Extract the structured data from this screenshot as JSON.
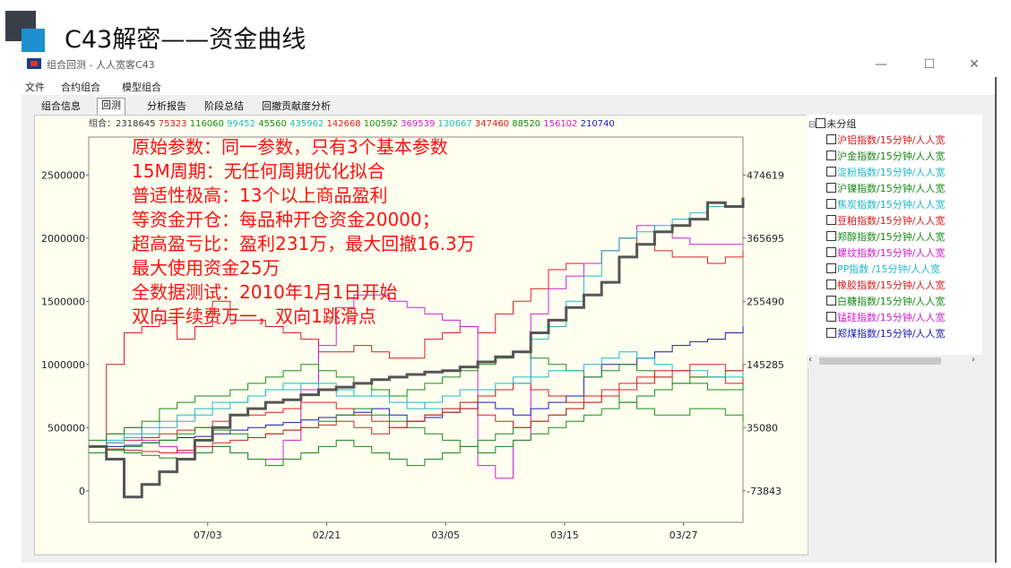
{
  "slide": {
    "title": "C43解密——资金曲线"
  },
  "window": {
    "title": "组合回测 - 人人宽客C43",
    "min": "—",
    "max": "☐",
    "close": "✕"
  },
  "menu": [
    "文件",
    "合约组合",
    "模型组合"
  ],
  "tabs": [
    "组合信息",
    "回测",
    "分析报告",
    "阶段总结",
    "回撤贡献度分析"
  ],
  "active_tab": "回测",
  "tree": {
    "root": "未分组",
    "items": [
      {
        "label": "沪铝指数/15分钟/人人宽",
        "color": "#d42020"
      },
      {
        "label": "沪金指数/15分钟/人人宽",
        "color": "#1a8a1a"
      },
      {
        "label": "淀粉指数/15分钟/人人宽",
        "color": "#20b8c8"
      },
      {
        "label": "沪镍指数/15分钟/人人宽",
        "color": "#1a8a1a"
      },
      {
        "label": "焦炭指数/15分钟/人人宽",
        "color": "#20b8c8"
      },
      {
        "label": "豆粕指数/15分钟/人人宽",
        "color": "#d42020"
      },
      {
        "label": "郑醇指数/15分钟/人人宽",
        "color": "#1a8a1a"
      },
      {
        "label": "螺纹指数/15分钟/人人宽",
        "color": "#d020d0"
      },
      {
        "label": "PP指数 /15分钟/人人宽",
        "color": "#20b8c8"
      },
      {
        "label": "橡胶指数/15分钟/人人宽",
        "color": "#d42020"
      },
      {
        "label": "白糖指数/15分钟/人人宽",
        "color": "#1a8a1a"
      },
      {
        "label": "锰硅指数/15分钟/人人宽",
        "color": "#d020d0"
      },
      {
        "label": "郑煤指数/15分钟/人人宽",
        "color": "#1a1ab8"
      }
    ]
  },
  "legend_prefix": "组合：2318645",
  "legend_values": [
    {
      "text": "75323",
      "color": "#d42020"
    },
    {
      "text": "116060",
      "color": "#1a8a1a"
    },
    {
      "text": "99452",
      "color": "#20b8c8"
    },
    {
      "text": "45560",
      "color": "#1a8a1a"
    },
    {
      "text": "435962",
      "color": "#20b8c8"
    },
    {
      "text": "142668",
      "color": "#d42020"
    },
    {
      "text": "100592",
      "color": "#1a8a1a"
    },
    {
      "text": "369539",
      "color": "#d020d0"
    },
    {
      "text": "130667",
      "color": "#20b8c8"
    },
    {
      "text": "347460",
      "color": "#d42020"
    },
    {
      "text": "88520",
      "color": "#1a8a1a"
    },
    {
      "text": "156102",
      "color": "#d020d0"
    },
    {
      "text": "210740",
      "color": "#1a1ab8"
    }
  ],
  "annotations": [
    "原始参数：同一参数，只有3个基本参数",
    "15M周期：无任何周期优化拟合",
    "普适性极高：13个以上商品盈利",
    "等资金开仓：每品种开仓资金20000；",
    "超高盈亏比：盈利231万，最大回撤16.3万",
    "最大使用资金25万",
    "全数据测试：2010年1月1日开始",
    "双向手续费万一，双向1跳滑点"
  ],
  "annotation_color": "#ff1010",
  "chart_data": {
    "type": "line",
    "left_axis_ticks": [
      "2500000",
      "2000000",
      "1500000",
      "1000000",
      "500000",
      "0"
    ],
    "left_ylim": [
      -250000,
      2800000
    ],
    "right_axis_ticks": [
      "474619",
      "365695",
      "255490",
      "145285",
      "35080",
      "-73843"
    ],
    "x_tick_labels": [
      "07/03",
      "02/21",
      "03/05",
      "03/15",
      "03/27"
    ],
    "series": [
      {
        "name": "组合",
        "color": "#555555",
        "width": 3,
        "values": [
          350000,
          250000,
          -50000,
          50000,
          150000,
          250000,
          400000,
          500000,
          600000,
          650000,
          700000,
          720000,
          760000,
          800000,
          820000,
          850000,
          880000,
          900000,
          920000,
          940000,
          950000,
          980000,
          1020000,
          1060000,
          1100000,
          1250000,
          1350000,
          1450000,
          1550000,
          1650000,
          1850000,
          1950000,
          2050000,
          2100000,
          2150000,
          2280000,
          2250000,
          2320000
        ]
      },
      {
        "name": "75323",
        "color": "#d42020",
        "width": 1,
        "values": [
          300000,
          1000000,
          1250000,
          1300000,
          1350000,
          1200000,
          1300000,
          1500000,
          1350000,
          1350000,
          1300000,
          1250000,
          1200000,
          1100000,
          1100000,
          1150000,
          1100000,
          1050000,
          1050000,
          1200000,
          1250000,
          1300000,
          1250000,
          1400000,
          1500000,
          1600000,
          1750000,
          1800000,
          1800000,
          1900000,
          2000000,
          1950000,
          1900000,
          1850000,
          1850000,
          1800000,
          1850000,
          1900000
        ]
      },
      {
        "name": "369539",
        "color": "#d020d0",
        "width": 1,
        "values": [
          300000,
          450000,
          500000,
          400000,
          350000,
          300000,
          300000,
          350000,
          300000,
          250000,
          250000,
          400000,
          800000,
          1150000,
          1450000,
          1550000,
          1550000,
          1500000,
          1450000,
          1400000,
          1350000,
          1300000,
          200000,
          100000,
          400000,
          1400000,
          1600000,
          1700000,
          1800000,
          1900000,
          2000000,
          2100000,
          2050000,
          2000000,
          1950000,
          1950000,
          1950000,
          1950000
        ]
      },
      {
        "name": "130667",
        "color": "#20b8c8",
        "width": 1,
        "values": [
          350000,
          400000,
          450000,
          500000,
          550000,
          600000,
          650000,
          700000,
          700000,
          750000,
          800000,
          850000,
          850000,
          800000,
          750000,
          750000,
          800000,
          750000,
          700000,
          650000,
          650000,
          700000,
          750000,
          800000,
          900000,
          1200000,
          1300000,
          1500000,
          1700000,
          1900000,
          2000000,
          2050000,
          2100000,
          2150000,
          2200000,
          2250000,
          2250000,
          2300000
        ]
      },
      {
        "name": "210740",
        "color": "#1a1ab8",
        "width": 1,
        "values": [
          350000,
          350000,
          360000,
          380000,
          400000,
          420000,
          430000,
          450000,
          480000,
          500000,
          520000,
          540000,
          560000,
          580000,
          600000,
          620000,
          650000,
          600000,
          550000,
          580000,
          620000,
          650000,
          700000,
          650000,
          600000,
          650000,
          700000,
          750000,
          900000,
          1000000,
          1000000,
          1050000,
          1100000,
          1150000,
          1180000,
          1200000,
          1250000,
          1300000
        ]
      },
      {
        "name": "116060",
        "color": "#1a8a1a",
        "width": 1,
        "values": [
          400000,
          450000,
          500000,
          550000,
          650000,
          700000,
          750000,
          750000,
          800000,
          850000,
          900000,
          950000,
          1000000,
          950000,
          900000,
          850000,
          800000,
          750000,
          800000,
          850000,
          900000,
          950000,
          1000000,
          1050000,
          1100000,
          1050000,
          1000000,
          950000,
          900000,
          950000,
          1000000,
          950000,
          900000,
          850000,
          850000,
          800000,
          800000,
          850000
        ]
      },
      {
        "name": "142668",
        "color": "#d42020",
        "width": 1,
        "values": [
          350000,
          380000,
          400000,
          420000,
          450000,
          480000,
          500000,
          550000,
          600000,
          600000,
          620000,
          650000,
          700000,
          700000,
          650000,
          600000,
          550000,
          500000,
          550000,
          600000,
          650000,
          700000,
          750000,
          800000,
          850000,
          800000,
          750000,
          700000,
          750000,
          800000,
          850000,
          900000,
          950000,
          950000,
          900000,
          900000,
          850000,
          900000
        ]
      },
      {
        "name": "100592",
        "color": "#1a8a1a",
        "width": 1,
        "values": [
          300000,
          320000,
          350000,
          380000,
          400000,
          450000,
          500000,
          480000,
          450000,
          420000,
          450000,
          480000,
          500000,
          550000,
          600000,
          650000,
          600000,
          550000,
          500000,
          450000,
          400000,
          350000,
          300000,
          350000,
          400000,
          450000,
          500000,
          550000,
          600000,
          650000,
          700000,
          750000,
          800000,
          850000,
          900000,
          900000,
          950000,
          950000
        ]
      },
      {
        "name": "99452",
        "color": "#20b8c8",
        "width": 1,
        "values": [
          350000,
          380000,
          420000,
          450000,
          500000,
          550000,
          600000,
          650000,
          700000,
          750000,
          800000,
          800000,
          850000,
          850000,
          800000,
          750000,
          750000,
          700000,
          650000,
          700000,
          750000,
          800000,
          800000,
          850000,
          850000,
          900000,
          950000,
          950000,
          1000000,
          1050000,
          1100000,
          1050000,
          1000000,
          950000,
          950000,
          900000,
          900000,
          950000
        ]
      },
      {
        "name": "88520",
        "color": "#1a8a1a",
        "width": 1,
        "values": [
          350000,
          330000,
          300000,
          280000,
          260000,
          250000,
          300000,
          350000,
          300000,
          250000,
          200000,
          250000,
          300000,
          350000,
          400000,
          350000,
          300000,
          250000,
          200000,
          250000,
          300000,
          350000,
          400000,
          450000,
          500000,
          550000,
          600000,
          650000,
          700000,
          750000,
          700000,
          650000,
          600000,
          600000,
          650000,
          650000,
          600000,
          550000
        ]
      },
      {
        "name": "347460",
        "color": "#d42020",
        "width": 1,
        "values": [
          350000,
          330000,
          320000,
          310000,
          300000,
          320000,
          350000,
          380000,
          400000,
          420000,
          450000,
          480000,
          500000,
          520000,
          550000,
          500000,
          450000,
          500000,
          550000,
          600000,
          620000,
          650000,
          600000,
          550000,
          500000,
          550000,
          600000,
          650000,
          700000,
          750000,
          800000,
          850000,
          900000,
          950000,
          1000000,
          1000000,
          950000,
          1000000
        ]
      }
    ]
  }
}
